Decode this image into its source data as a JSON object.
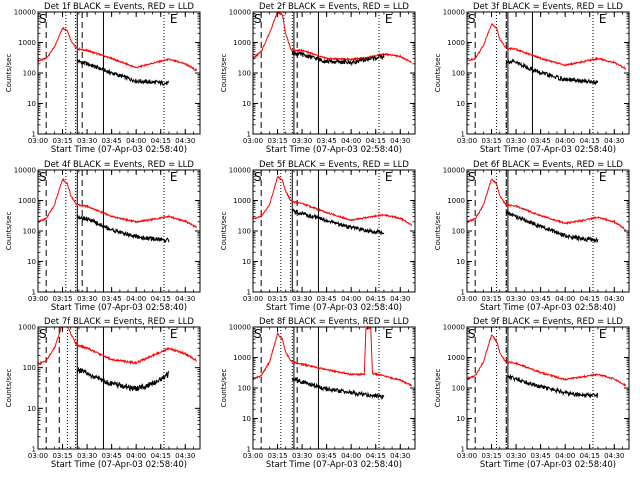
{
  "figure": {
    "time_axis_label": "Start Time (07-Apr-03 02:58:40)"
  },
  "chart_data": [
    {
      "type": "line",
      "title": "Det 1f BLACK = Events, RED = LLD",
      "xlabel": "Start Time (07-Apr-03 02:58:40)",
      "ylabel": "Counts/sec",
      "yscale": "log",
      "ylim": [
        1,
        10000
      ],
      "xlim": [
        "03:00",
        "04:39"
      ],
      "xticks": [
        "03:00",
        "03:15",
        "03:30",
        "03:45",
        "04:00",
        "04:15",
        "04:30"
      ],
      "yticks": [
        "1",
        "10",
        "100",
        "1000",
        "10000"
      ],
      "grid": false,
      "markers": {
        "dashed": [
          "03:05",
          "03:27"
        ],
        "dotted": [
          "03:17",
          "03:23",
          "04:17"
        ],
        "solid": [
          "03:24",
          "03:40"
        ],
        "labels": [
          {
            "text": "S",
            "at": "03:00"
          },
          {
            "text": "E",
            "at": "04:20"
          }
        ]
      },
      "series": [
        {
          "name": "RED = LLD",
          "color": "#ff0000",
          "t": [
            "03:00",
            "03:05",
            "03:10",
            "03:15",
            "03:18",
            "03:20",
            "03:23",
            "03:25",
            "03:30",
            "03:45",
            "04:00",
            "04:10",
            "04:20",
            "04:30",
            "04:37"
          ],
          "values": [
            250,
            300,
            700,
            3000,
            2500,
            1200,
            700,
            600,
            550,
            300,
            150,
            210,
            280,
            200,
            120
          ]
        },
        {
          "name": "BLACK = Events",
          "color": "#000000",
          "t": [
            "03:24",
            "03:30",
            "03:45",
            "04:00",
            "04:10",
            "04:20"
          ],
          "values": [
            250,
            200,
            100,
            55,
            50,
            45
          ]
        }
      ]
    },
    {
      "type": "line",
      "title": "Det 2f BLACK = Events, RED = LLD",
      "xlabel": "Start Time (07-Apr-03 02:58:40)",
      "ylabel": "Counts/sec",
      "yscale": "log",
      "ylim": [
        1,
        10000
      ],
      "xlim": [
        "03:00",
        "04:39"
      ],
      "xticks": [
        "03:00",
        "03:15",
        "03:30",
        "03:45",
        "04:00",
        "04:15",
        "04:30"
      ],
      "yticks": [
        "1",
        "10",
        "100",
        "1000",
        "10000"
      ],
      "grid": false,
      "markers": {
        "dashed": [
          "03:05",
          "03:27"
        ],
        "dotted": [
          "03:19",
          "03:24",
          "04:17"
        ],
        "solid": [
          "03:25",
          "03:40"
        ],
        "labels": [
          {
            "text": "S",
            "at": "03:00"
          },
          {
            "text": "E",
            "at": "04:20"
          }
        ]
      },
      "series": [
        {
          "name": "RED = LLD",
          "color": "#ff0000",
          "t": [
            "03:00",
            "03:05",
            "03:10",
            "03:15",
            "03:18",
            "03:20",
            "03:23",
            "03:25",
            "03:30",
            "03:45",
            "04:00",
            "04:10",
            "04:20",
            "04:30",
            "04:37"
          ],
          "values": [
            300,
            500,
            2000,
            10000,
            8000,
            2000,
            600,
            550,
            550,
            300,
            280,
            320,
            420,
            350,
            220
          ]
        },
        {
          "name": "BLACK = Events",
          "color": "#000000",
          "t": [
            "03:24",
            "03:30",
            "03:45",
            "04:00",
            "04:10",
            "04:20"
          ],
          "values": [
            450,
            400,
            240,
            220,
            280,
            350
          ]
        }
      ]
    },
    {
      "type": "line",
      "title": "Det 3f BLACK = Events, RED = LLD",
      "xlabel": "Start Time (07-Apr-03 02:58:40)",
      "ylabel": "Counts/sec",
      "yscale": "log",
      "ylim": [
        1,
        10000
      ],
      "xlim": [
        "03:00",
        "04:39"
      ],
      "xticks": [
        "03:00",
        "03:15",
        "03:30",
        "03:45",
        "04:00",
        "04:15",
        "04:30"
      ],
      "yticks": [
        "1",
        "10",
        "100",
        "1000",
        "10000"
      ],
      "grid": false,
      "markers": {
        "dashed": [
          "03:05",
          "03:24"
        ],
        "dotted": [
          "03:18",
          "03:24",
          "04:17"
        ],
        "solid": [
          "03:25",
          "03:40"
        ],
        "labels": [
          {
            "text": "S",
            "at": "03:00"
          },
          {
            "text": "E",
            "at": "04:20"
          }
        ]
      },
      "series": [
        {
          "name": "RED = LLD",
          "color": "#ff0000",
          "t": [
            "03:00",
            "03:05",
            "03:10",
            "03:15",
            "03:18",
            "03:20",
            "03:23",
            "03:25",
            "03:30",
            "03:45",
            "04:00",
            "04:10",
            "04:20",
            "04:30",
            "04:37"
          ],
          "values": [
            250,
            300,
            800,
            4000,
            3000,
            1300,
            750,
            650,
            600,
            300,
            180,
            230,
            300,
            220,
            140
          ]
        },
        {
          "name": "BLACK = Events",
          "color": "#000000",
          "t": [
            "03:24",
            "03:30",
            "03:45",
            "04:00",
            "04:10",
            "04:20"
          ],
          "values": [
            250,
            220,
            100,
            60,
            55,
            50
          ]
        }
      ]
    },
    {
      "type": "line",
      "title": "Det 4f BLACK = Events, RED = LLD",
      "xlabel": "Start Time (07-Apr-03 02:58:40)",
      "ylabel": "Counts/sec",
      "yscale": "log",
      "ylim": [
        1,
        10000
      ],
      "xlim": [
        "03:00",
        "04:39"
      ],
      "xticks": [
        "03:00",
        "03:15",
        "03:30",
        "03:45",
        "04:00",
        "04:15",
        "04:30"
      ],
      "yticks": [
        "1",
        "10",
        "100",
        "1000",
        "10000"
      ],
      "grid": false,
      "markers": {
        "dashed": [
          "03:05",
          "03:27"
        ],
        "dotted": [
          "03:17",
          "03:23",
          "04:17"
        ],
        "solid": [
          "03:24",
          "03:40"
        ],
        "labels": [
          {
            "text": "S",
            "at": "03:00"
          },
          {
            "text": "E",
            "at": "04:20"
          }
        ]
      },
      "series": [
        {
          "name": "RED = LLD",
          "color": "#ff0000",
          "t": [
            "03:00",
            "03:05",
            "03:10",
            "03:15",
            "03:18",
            "03:20",
            "03:23",
            "03:25",
            "03:30",
            "03:45",
            "04:00",
            "04:10",
            "04:20",
            "04:30",
            "04:37"
          ],
          "values": [
            200,
            260,
            700,
            5000,
            3500,
            1500,
            800,
            700,
            650,
            300,
            200,
            240,
            300,
            210,
            130
          ]
        },
        {
          "name": "BLACK = Events",
          "color": "#000000",
          "t": [
            "03:24",
            "03:30",
            "03:45",
            "04:00",
            "04:10",
            "04:20"
          ],
          "values": [
            300,
            250,
            110,
            65,
            55,
            50
          ]
        }
      ]
    },
    {
      "type": "line",
      "title": "Det 5f BLACK = Events, RED = LLD",
      "xlabel": "Start Time (07-Apr-03 02:58:40)",
      "ylabel": "Counts/sec",
      "yscale": "log",
      "ylim": [
        1,
        10000
      ],
      "xlim": [
        "03:00",
        "04:39"
      ],
      "xticks": [
        "03:00",
        "03:15",
        "03:30",
        "03:45",
        "04:00",
        "04:15",
        "04:30"
      ],
      "yticks": [
        "1",
        "10",
        "100",
        "1000",
        "10000"
      ],
      "grid": false,
      "markers": {
        "dashed": [
          "03:05",
          "03:27"
        ],
        "dotted": [
          "03:17",
          "03:23",
          "04:17"
        ],
        "solid": [
          "03:24",
          "03:40"
        ],
        "labels": [
          {
            "text": "S",
            "at": "03:00"
          },
          {
            "text": "E",
            "at": "04:20"
          }
        ]
      },
      "series": [
        {
          "name": "RED = LLD",
          "color": "#ff0000",
          "t": [
            "03:00",
            "03:05",
            "03:10",
            "03:15",
            "03:18",
            "03:20",
            "03:23",
            "03:25",
            "03:30",
            "03:45",
            "04:00",
            "04:10",
            "04:20",
            "04:30",
            "04:37"
          ],
          "values": [
            250,
            300,
            700,
            6000,
            4500,
            2000,
            1000,
            900,
            800,
            400,
            230,
            280,
            340,
            260,
            160
          ]
        },
        {
          "name": "BLACK = Events",
          "color": "#000000",
          "t": [
            "03:24",
            "03:30",
            "03:45",
            "04:00",
            "04:10",
            "04:20"
          ],
          "values": [
            450,
            380,
            220,
            130,
            100,
            90
          ]
        }
      ]
    },
    {
      "type": "line",
      "title": "Det 6f BLACK = Events, RED = LLD",
      "xlabel": "Start Time (07-Apr-03 02:58:40)",
      "ylabel": "Counts/sec",
      "yscale": "log",
      "ylim": [
        1,
        10000
      ],
      "xlim": [
        "03:00",
        "04:39"
      ],
      "xticks": [
        "03:00",
        "03:15",
        "03:30",
        "03:45",
        "04:00",
        "04:15",
        "04:30"
      ],
      "yticks": [
        "1",
        "10",
        "100",
        "1000",
        "10000"
      ],
      "grid": false,
      "markers": {
        "dashed": [
          "03:05",
          "03:24"
        ],
        "dotted": [
          "03:18",
          "03:24",
          "04:17"
        ],
        "solid": [
          "03:25"
        ],
        "labels": [
          {
            "text": "S",
            "at": "03:00"
          },
          {
            "text": "E",
            "at": "04:20"
          }
        ]
      },
      "series": [
        {
          "name": "RED = LLD",
          "color": "#ff0000",
          "t": [
            "03:00",
            "03:05",
            "03:10",
            "03:15",
            "03:18",
            "03:20",
            "03:23",
            "03:25",
            "03:30",
            "03:45",
            "04:00",
            "04:10",
            "04:20",
            "04:30",
            "04:37"
          ],
          "values": [
            200,
            250,
            700,
            5000,
            3500,
            1500,
            800,
            700,
            650,
            320,
            180,
            220,
            280,
            200,
            110
          ]
        },
        {
          "name": "BLACK = Events",
          "color": "#000000",
          "t": [
            "03:24",
            "03:30",
            "03:45",
            "04:00",
            "04:10",
            "04:20"
          ],
          "values": [
            400,
            300,
            140,
            70,
            55,
            50
          ]
        }
      ]
    },
    {
      "type": "line",
      "title": "Det 7f BLACK = Events, RED = LLD",
      "xlabel": "Start Time (07-Apr-03 02:58:40)",
      "ylabel": "Counts/sec",
      "yscale": "log",
      "ylim": [
        1,
        1000
      ],
      "xlim": [
        "03:00",
        "04:39"
      ],
      "xticks": [
        "03:00",
        "03:15",
        "03:30",
        "03:45",
        "04:00",
        "04:15",
        "04:30"
      ],
      "yticks": [
        "1",
        "10",
        "100",
        "1000"
      ],
      "grid": false,
      "markers": {
        "dashed": [
          "03:05",
          "03:13"
        ],
        "dotted": [
          "03:18",
          "03:23",
          "04:17"
        ],
        "solid": [
          "03:24",
          "03:40"
        ],
        "labels": [
          {
            "text": "S",
            "at": "03:00"
          },
          {
            "text": "E",
            "at": "04:20"
          }
        ]
      },
      "series": [
        {
          "name": "RED = LLD",
          "color": "#ff0000",
          "t": [
            "03:00",
            "03:05",
            "03:10",
            "03:15",
            "03:18",
            "03:20",
            "03:23",
            "03:25",
            "03:30",
            "03:45",
            "04:00",
            "04:10",
            "04:20",
            "04:30",
            "04:37"
          ],
          "values": [
            120,
            150,
            300,
            1200,
            1000,
            700,
            400,
            350,
            300,
            160,
            130,
            200,
            300,
            220,
            150
          ]
        },
        {
          "name": "BLACK = Events",
          "color": "#000000",
          "t": [
            "03:24",
            "03:30",
            "03:45",
            "04:00",
            "04:10",
            "04:20"
          ],
          "values": [
            90,
            70,
            40,
            30,
            40,
            70
          ]
        }
      ]
    },
    {
      "type": "line",
      "title": "Det 8f BLACK = Events, RED = LLD",
      "xlabel": "Start Time (07-Apr-03 02:58:40)",
      "ylabel": "Counts/sec",
      "yscale": "log",
      "ylim": [
        1,
        10000
      ],
      "xlim": [
        "03:00",
        "04:39"
      ],
      "xticks": [
        "03:00",
        "03:15",
        "03:30",
        "03:45",
        "04:00",
        "04:15",
        "04:30"
      ],
      "yticks": [
        "1",
        "10",
        "100",
        "1000",
        "10000"
      ],
      "grid": false,
      "markers": {
        "dashed": [
          "03:05",
          "03:27"
        ],
        "dotted": [
          "03:17",
          "03:24",
          "04:17"
        ],
        "solid": [
          "03:25",
          "03:40"
        ],
        "labels": [
          {
            "text": "S",
            "at": "03:00"
          },
          {
            "text": "E",
            "at": "04:20"
          }
        ]
      },
      "series": [
        {
          "name": "RED = LLD",
          "color": "#ff0000",
          "t": [
            "03:00",
            "03:05",
            "03:10",
            "03:15",
            "03:18",
            "03:20",
            "03:23",
            "03:25",
            "03:30",
            "03:45",
            "04:00",
            "04:08",
            "04:09",
            "04:12",
            "04:13",
            "04:20",
            "04:30",
            "04:37"
          ],
          "values": [
            200,
            250,
            700,
            6000,
            4000,
            1500,
            800,
            700,
            600,
            400,
            280,
            280,
            9000,
            9000,
            300,
            250,
            180,
            120
          ]
        },
        {
          "name": "BLACK = Events",
          "color": "#000000",
          "t": [
            "03:24",
            "03:30",
            "03:45",
            "04:00",
            "04:10",
            "04:20"
          ],
          "values": [
            200,
            160,
            90,
            70,
            60,
            50
          ]
        }
      ]
    },
    {
      "type": "line",
      "title": "Det 9f BLACK = Events, RED = LLD",
      "xlabel": "Start Time (07-Apr-03 02:58:40)",
      "ylabel": "Counts/sec",
      "yscale": "log",
      "ylim": [
        1,
        10000
      ],
      "xlim": [
        "03:00",
        "04:39"
      ],
      "xticks": [
        "03:00",
        "03:15",
        "03:30",
        "03:45",
        "04:00",
        "04:15",
        "04:30"
      ],
      "yticks": [
        "1",
        "10",
        "100",
        "1000",
        "10000"
      ],
      "grid": false,
      "markers": {
        "dashed": [
          "03:05",
          "03:24"
        ],
        "dotted": [
          "03:18",
          "03:24",
          "04:17"
        ],
        "solid": [
          "03:25"
        ],
        "labels": [
          {
            "text": "S",
            "at": "03:00"
          },
          {
            "text": "E",
            "at": "04:20"
          }
        ]
      },
      "series": [
        {
          "name": "RED = LLD",
          "color": "#ff0000",
          "t": [
            "03:00",
            "03:05",
            "03:10",
            "03:15",
            "03:18",
            "03:20",
            "03:23",
            "03:25",
            "03:30",
            "03:45",
            "04:00",
            "04:10",
            "04:20",
            "04:30",
            "04:37"
          ],
          "values": [
            200,
            250,
            700,
            5500,
            3500,
            1500,
            800,
            700,
            650,
            320,
            190,
            230,
            280,
            200,
            120
          ]
        },
        {
          "name": "BLACK = Events",
          "color": "#000000",
          "t": [
            "03:24",
            "03:30",
            "03:45",
            "04:00",
            "04:10",
            "04:20"
          ],
          "values": [
            250,
            200,
            110,
            70,
            60,
            55
          ]
        }
      ]
    }
  ]
}
